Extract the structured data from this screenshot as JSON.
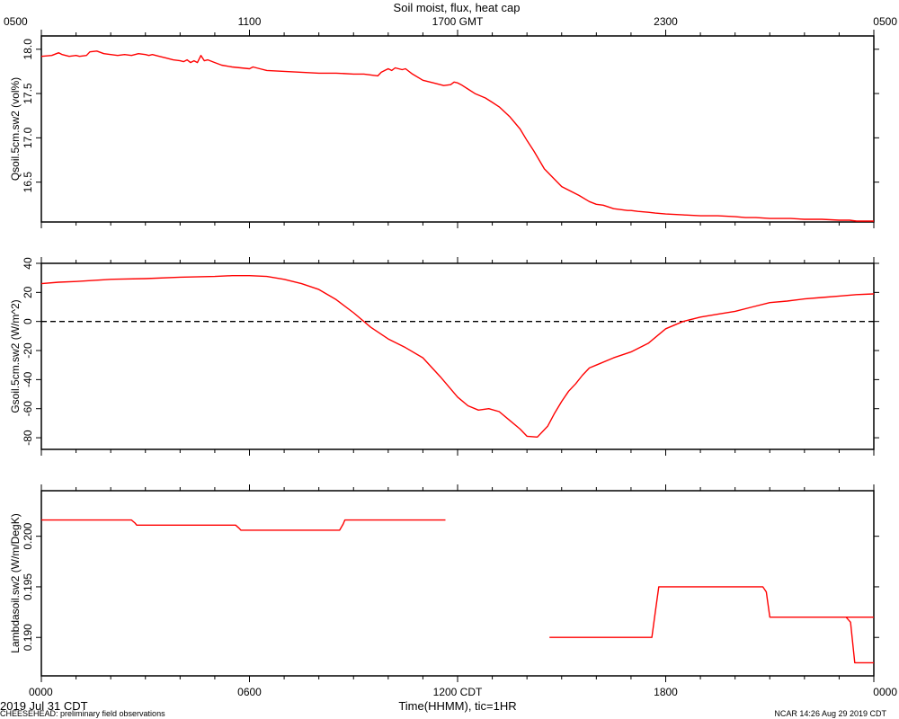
{
  "title": "Soil moist, flux, heat cap",
  "top_axis": {
    "unit_label": "1700 GMT",
    "labels": [
      "0500",
      "1100",
      "1700 GMT",
      "2300",
      "0500"
    ]
  },
  "bottom_axis": {
    "labels": [
      "0000",
      "0600",
      "1200 CDT",
      "1800",
      "0000"
    ],
    "xlabel": "Time(HHMM), tic=1HR"
  },
  "footer": {
    "date": "2019 Jul 31 CDT",
    "project": "CHEESEHEAD: preliminary field observations",
    "stamp": "NCAR 14:26 Aug 29 2019 CDT"
  },
  "colors": {
    "series": "#ff0000",
    "axes": "#000000",
    "zero_line": "#000000"
  },
  "chart_data": [
    {
      "type": "line",
      "ylabel": "Qsoil.5cm.sw2 (vol%)",
      "xlim": [
        0,
        24
      ],
      "ylim": [
        16.05,
        18.15
      ],
      "yticks": [
        16.5,
        17.0,
        17.5,
        18.0
      ],
      "ytick_labels": [
        "16.5",
        "17.0",
        "17.5",
        "18.0"
      ],
      "series": [
        {
          "x": [
            0,
            0.3,
            0.5,
            0.6,
            0.8,
            1.0,
            1.1,
            1.3,
            1.4,
            1.6,
            1.8,
            2.0,
            2.2,
            2.4,
            2.6,
            2.8,
            3.0,
            3.1,
            3.2,
            3.4,
            3.6,
            3.8,
            4.0,
            4.1,
            4.2,
            4.3,
            4.4,
            4.5,
            4.6,
            4.7,
            4.8,
            5.0,
            5.2,
            5.5,
            6.0,
            6.1,
            6.3,
            6.5,
            7.0,
            7.5,
            8.0,
            8.5,
            9.0,
            9.3,
            9.5,
            9.7,
            9.8,
            9.9,
            10.0,
            10.1,
            10.2,
            10.4,
            10.5,
            10.7,
            11.0,
            11.3,
            11.6,
            11.8,
            11.9,
            12.0,
            12.1,
            12.3,
            12.5,
            12.8,
            13.0,
            13.2,
            13.5,
            13.8,
            14.0,
            14.2,
            14.5,
            15.0,
            15.5,
            15.8,
            16.0,
            16.2,
            16.5,
            16.7,
            16.9,
            17.0,
            17.2,
            17.5,
            17.7,
            18.0,
            18.5,
            19.0,
            19.5,
            20.0,
            20.3,
            20.6,
            21.0,
            21.3,
            21.6,
            22.0,
            22.5,
            23.0,
            23.3,
            23.5,
            24.0
          ],
          "y": [
            17.92,
            17.93,
            17.96,
            17.94,
            17.92,
            17.93,
            17.92,
            17.93,
            17.97,
            17.98,
            17.95,
            17.94,
            17.93,
            17.94,
            17.93,
            17.95,
            17.94,
            17.93,
            17.94,
            17.92,
            17.9,
            17.88,
            17.87,
            17.86,
            17.88,
            17.85,
            17.87,
            17.85,
            17.93,
            17.87,
            17.88,
            17.85,
            17.82,
            17.8,
            17.78,
            17.8,
            17.78,
            17.76,
            17.75,
            17.74,
            17.73,
            17.73,
            17.72,
            17.72,
            17.71,
            17.7,
            17.74,
            17.76,
            17.78,
            17.76,
            17.79,
            17.77,
            17.78,
            17.72,
            17.65,
            17.62,
            17.59,
            17.6,
            17.63,
            17.62,
            17.6,
            17.55,
            17.5,
            17.45,
            17.4,
            17.35,
            17.24,
            17.1,
            16.97,
            16.85,
            16.65,
            16.45,
            16.35,
            16.28,
            16.25,
            16.24,
            16.2,
            16.19,
            16.18,
            16.18,
            16.17,
            16.16,
            16.15,
            16.14,
            16.13,
            16.12,
            16.12,
            16.11,
            16.1,
            16.1,
            16.09,
            16.09,
            16.09,
            16.08,
            16.08,
            16.07,
            16.07,
            16.06,
            16.06
          ]
        }
      ]
    },
    {
      "type": "line",
      "ylabel": "Gsoil.5cm.sw2 (W/m^2)",
      "xlim": [
        0,
        24
      ],
      "ylim": [
        -88,
        40
      ],
      "yticks": [
        -80,
        -60,
        -40,
        -20,
        0,
        20,
        40
      ],
      "ytick_labels": [
        "-80",
        "-60",
        "-40",
        "-20",
        "0",
        "20",
        "40"
      ],
      "reference_line": 0,
      "series": [
        {
          "x": [
            0,
            0.5,
            1,
            2,
            3,
            4,
            5,
            5.5,
            6,
            6.5,
            7,
            7.5,
            8,
            8.5,
            9,
            9.5,
            10,
            10.5,
            11,
            11.5,
            12,
            12.3,
            12.6,
            12.9,
            13.2,
            13.5,
            13.8,
            14,
            14.3,
            14.6,
            14.8,
            15,
            15.2,
            15.4,
            15.6,
            15.8,
            16,
            16.5,
            17,
            17.5,
            18,
            18.5,
            19,
            19.5,
            20,
            20.5,
            21,
            21.5,
            22,
            22.5,
            23,
            23.5,
            24
          ],
          "y": [
            26,
            27,
            27.5,
            29,
            29.5,
            30.5,
            31,
            31.5,
            31.5,
            31,
            29,
            26,
            22,
            15,
            6,
            -4,
            -12,
            -18,
            -25,
            -38,
            -52,
            -58,
            -61,
            -60,
            -62,
            -68,
            -74,
            -79,
            -79.5,
            -72,
            -63,
            -55,
            -48,
            -43,
            -37,
            -32,
            -30,
            -25,
            -21,
            -15,
            -5,
            0,
            3,
            5,
            7,
            10,
            13,
            14,
            15.5,
            16.5,
            17.5,
            18.5,
            19
          ]
        }
      ]
    },
    {
      "type": "line",
      "ylabel": "Lambdasoil.sw2 (W/m/DegK)",
      "xlim": [
        0,
        24
      ],
      "ylim": [
        0.1862,
        0.2045
      ],
      "yticks": [
        0.19,
        0.195,
        0.2
      ],
      "ytick_labels": [
        "0.190",
        "0.195",
        "0.200"
      ],
      "series": [
        {
          "segments": [
            {
              "x": [
                0,
                2.6,
                2.7,
                2.75,
                3.0,
                5.6,
                5.7,
                5.75,
                6.0,
                8.6,
                8.7,
                8.75,
                9.0,
                11.65
              ],
              "y": [
                0.2016,
                0.2016,
                0.2013,
                0.2011,
                0.2011,
                0.2011,
                0.2008,
                0.2006,
                0.2006,
                0.2006,
                0.2012,
                0.2016,
                0.2016,
                0.2016
              ]
            },
            {
              "x": [
                14.65,
                17.6,
                17.7,
                17.8,
                18.0,
                20.8,
                20.9,
                21.0,
                21.2,
                24.0
              ],
              "y": [
                0.19,
                0.19,
                0.1925,
                0.195,
                0.195,
                0.195,
                0.1945,
                0.192,
                0.192,
                0.192
              ]
            },
            {
              "x": [
                23.2,
                23.33,
                23.45,
                24.0
              ],
              "y": [
                0.192,
                0.1915,
                0.1875,
                0.1875
              ]
            }
          ]
        }
      ]
    }
  ]
}
